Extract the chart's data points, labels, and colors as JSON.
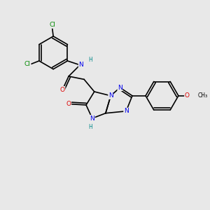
{
  "background_color": "#e8e8e8",
  "bond_color": "#000000",
  "bond_width": 1.2,
  "atom_colors": {
    "C": "#000000",
    "N": "#0000ee",
    "O": "#dd0000",
    "Cl": "#008800",
    "H": "#008888"
  },
  "font_size": 6.5,
  "figsize": [
    3.0,
    3.0
  ],
  "dpi": 100
}
